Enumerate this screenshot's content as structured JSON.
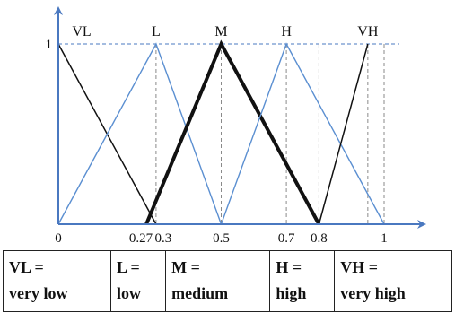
{
  "chart_data": {
    "type": "line",
    "y_label_one": "1",
    "terms": [
      {
        "label": "VL",
        "points": [
          [
            0,
            1
          ],
          [
            0.3,
            0
          ]
        ],
        "style": "thin-dark"
      },
      {
        "label": "L",
        "points": [
          [
            0,
            0
          ],
          [
            0.3,
            1
          ],
          [
            0.5,
            0
          ]
        ],
        "style": "thin-blue"
      },
      {
        "label": "M",
        "points": [
          [
            0.27,
            0
          ],
          [
            0.5,
            1
          ],
          [
            0.8,
            0
          ]
        ],
        "style": "bold-black"
      },
      {
        "label": "H",
        "points": [
          [
            0.5,
            0
          ],
          [
            0.7,
            1
          ],
          [
            1,
            0
          ]
        ],
        "style": "thin-blue"
      },
      {
        "label": "VH",
        "points": [
          [
            0.8,
            0
          ],
          [
            0.95,
            1
          ]
        ],
        "style": "thin-dark"
      }
    ],
    "x_ticks": [
      {
        "label": "0",
        "value": 0
      },
      {
        "label": "0.27",
        "value": 0.27
      },
      {
        "label": "0.3",
        "value": 0.3
      },
      {
        "label": "0.5",
        "value": 0.5
      },
      {
        "label": "0.7",
        "value": 0.7
      },
      {
        "label": "0.8",
        "value": 0.8
      },
      {
        "label": "1",
        "value": 1
      }
    ],
    "dashed_verticals": [
      0.3,
      0.5,
      0.7,
      0.8,
      0.95,
      1
    ],
    "colors": {
      "blue": "#5b8fd1",
      "dark": "#111111",
      "dashed": "#8a8a8a",
      "axis": "#4a78c0"
    }
  },
  "legend": [
    {
      "abbr": "VL =",
      "meaning": "very low"
    },
    {
      "abbr": "L =",
      "meaning": "low"
    },
    {
      "abbr": "M =",
      "meaning": "medium"
    },
    {
      "abbr": "H =",
      "meaning": "high"
    },
    {
      "abbr": "VH =",
      "meaning": "very high"
    }
  ]
}
